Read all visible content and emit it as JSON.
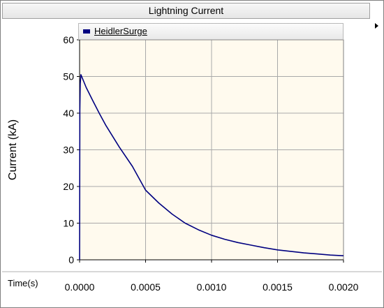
{
  "window": {
    "title": "Lightning Current"
  },
  "colors": {
    "plot_background": "#fffaee",
    "series": "#000080",
    "grid": "#a9a9a9"
  },
  "chart_data": {
    "type": "line",
    "title": "Lightning Current",
    "xlabel": "Time(s)",
    "ylabel": "Current (kA)",
    "xlim": [
      0,
      0.002
    ],
    "ylim": [
      0,
      60
    ],
    "x_ticks": [
      0,
      0.0005,
      0.001,
      0.0015,
      0.002
    ],
    "x_tick_labels": [
      "0.0000",
      "0.0005",
      "0.0010",
      "0.0015",
      "0.0020"
    ],
    "y_ticks": [
      0,
      10,
      20,
      30,
      40,
      50,
      60
    ],
    "y_tick_labels": [
      "0",
      "10",
      "20",
      "30",
      "40",
      "50",
      "60"
    ],
    "grid": true,
    "legend_position": "top-left",
    "series": [
      {
        "name": "HeidlerSurge",
        "color": "#000080",
        "x": [
          0,
          2e-06,
          5e-06,
          1e-05,
          5e-05,
          0.0001,
          0.00015,
          0.0002,
          0.0003,
          0.0004,
          0.0005,
          0.0006,
          0.0007,
          0.0008,
          0.0009,
          0.001,
          0.0011,
          0.0012,
          0.0013,
          0.0014,
          0.0015,
          0.0016,
          0.0017,
          0.0018,
          0.0019,
          0.002
        ],
        "y": [
          0,
          41,
          48,
          50.5,
          47,
          43.4,
          39.9,
          36.6,
          30.8,
          25.5,
          19.0,
          15.5,
          12.5,
          10.0,
          8.2,
          6.7,
          5.6,
          4.7,
          4.0,
          3.3,
          2.7,
          2.3,
          1.9,
          1.6,
          1.3,
          1.1
        ]
      }
    ]
  }
}
